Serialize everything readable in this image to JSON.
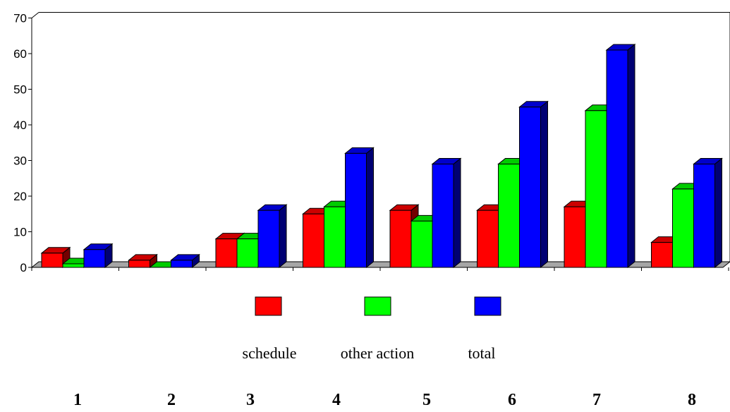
{
  "chart_data": {
    "type": "bar",
    "style": "3d-clustered-column",
    "title": "",
    "xlabel": "",
    "ylabel": "",
    "categories": [
      "1",
      "2",
      "3",
      "4",
      "5",
      "6",
      "7",
      "8"
    ],
    "series": [
      {
        "name": "schedule",
        "color": "#ff0000",
        "values": [
          4,
          2,
          8,
          15,
          16,
          16,
          17,
          7
        ]
      },
      {
        "name": "other action",
        "color": "#00ff00",
        "values": [
          1,
          0,
          8,
          17,
          13,
          29,
          44,
          22
        ]
      },
      {
        "name": "total",
        "color": "#0000ff",
        "values": [
          5,
          2,
          16,
          32,
          29,
          45,
          61,
          29
        ]
      }
    ],
    "ylim": [
      0,
      70
    ],
    "yticks": [
      "0",
      "10",
      "20",
      "30",
      "40",
      "50",
      "60",
      "70"
    ],
    "grid": false,
    "legend_position": "bottom"
  }
}
